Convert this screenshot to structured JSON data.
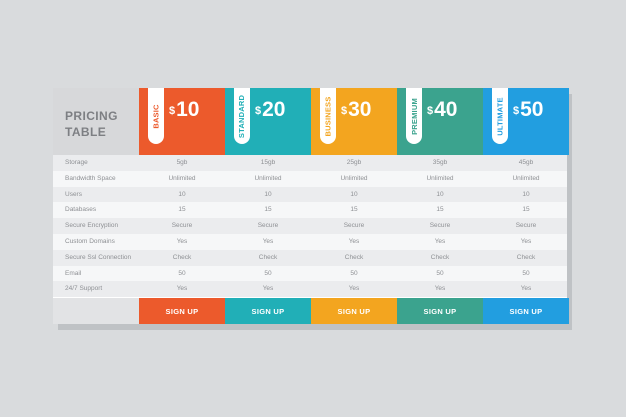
{
  "title": [
    "PRICING",
    "TABLE"
  ],
  "plans": [
    {
      "name": "BASIC",
      "currency": "$",
      "price": "10",
      "color": "#ec5a2c",
      "signup": "SIGN UP"
    },
    {
      "name": "STANDARD",
      "currency": "$",
      "price": "20",
      "color": "#21afb7",
      "signup": "SIGN UP"
    },
    {
      "name": "BUSINESS",
      "currency": "$",
      "price": "30",
      "color": "#f3a51f",
      "signup": "SIGN UP"
    },
    {
      "name": "PREMIUM",
      "currency": "$",
      "price": "40",
      "color": "#3ba38e",
      "signup": "SIGN UP"
    },
    {
      "name": "ULTIMATE",
      "currency": "$",
      "price": "50",
      "color": "#229ee0",
      "signup": "SIGN UP"
    }
  ],
  "features": [
    {
      "label": "Storage",
      "values": [
        "5gb",
        "15gb",
        "25gb",
        "35gb",
        "45gb"
      ]
    },
    {
      "label": "Bandwidth Space",
      "values": [
        "Unlimited",
        "Unlimited",
        "Unlimited",
        "Unlimited",
        "Unlimited"
      ]
    },
    {
      "label": "Users",
      "values": [
        "10",
        "10",
        "10",
        "10",
        "10"
      ]
    },
    {
      "label": "Databases",
      "values": [
        "15",
        "15",
        "15",
        "15",
        "15"
      ]
    },
    {
      "label": "Secure Encryption",
      "values": [
        "Secure",
        "Secure",
        "Secure",
        "Secure",
        "Secure"
      ]
    },
    {
      "label": "Custom Domains",
      "values": [
        "Yes",
        "Yes",
        "Yes",
        "Yes",
        "Yes"
      ]
    },
    {
      "label": "Secure Ssl Connection",
      "values": [
        "Check",
        "Check",
        "Check",
        "Check",
        "Check"
      ]
    },
    {
      "label": "Email",
      "values": [
        "50",
        "50",
        "50",
        "50",
        "50"
      ]
    },
    {
      "label": "24/7 Support",
      "values": [
        "Yes",
        "Yes",
        "Yes",
        "Yes",
        "Yes"
      ]
    }
  ]
}
